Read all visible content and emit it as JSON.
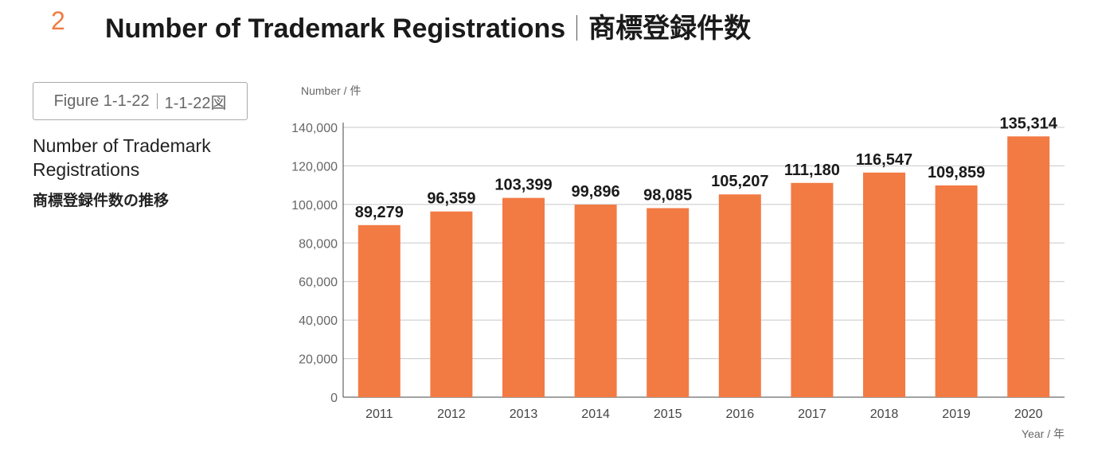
{
  "header": {
    "section_number": "2",
    "title_en": "Number of Trademark Registrations",
    "title_jp": "商標登録件数"
  },
  "figure": {
    "id_en": "Figure 1-1-22",
    "id_jp": "1-1-22図",
    "title_en": "Number of Trademark Registrations",
    "title_jp": "商標登録件数の推移"
  },
  "colors": {
    "bar": "#f27a43",
    "accent": "#f07c43",
    "grid": "#c8c8c8"
  },
  "chart_data": {
    "type": "bar",
    "ylabel": "Number / 件",
    "xlabel": "Year / 年",
    "categories": [
      "2011",
      "2012",
      "2013",
      "2014",
      "2015",
      "2016",
      "2017",
      "2018",
      "2019",
      "2020"
    ],
    "values": [
      89279,
      96359,
      103399,
      99896,
      98085,
      105207,
      111180,
      116547,
      109859,
      135314
    ],
    "value_labels": [
      "89,279",
      "96,359",
      "103,399",
      "99,896",
      "98,085",
      "105,207",
      "111,180",
      "116,547",
      "109,859",
      "135,314"
    ],
    "yticks": [
      "0",
      "20,000",
      "40,000",
      "60,000",
      "80,000",
      "100,000",
      "120,000",
      "140,000"
    ],
    "ylim": [
      0,
      140000
    ],
    "grid": true
  }
}
